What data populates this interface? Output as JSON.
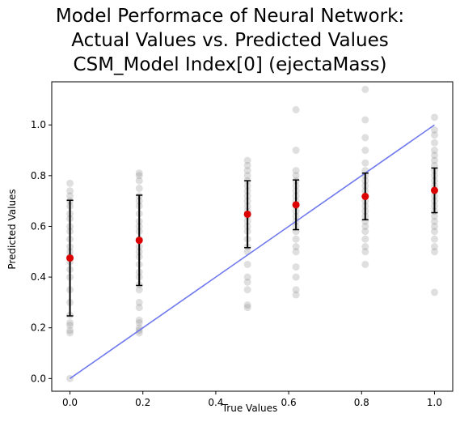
{
  "chart_data": {
    "type": "scatter",
    "title": [
      "Model Performace of Neural Network:",
      "Actual Values vs. Predicted Values",
      "CSM_Model Index[0] (ejectaMass)"
    ],
    "xlabel": "True Values",
    "ylabel": "Predicted Values",
    "xlim": [
      -0.05,
      1.05
    ],
    "ylim": [
      -0.05,
      1.17
    ],
    "xticks": [
      "0.0",
      "0.2",
      "0.4",
      "0.6",
      "0.8",
      "1.0"
    ],
    "yticks": [
      "0.0",
      "0.2",
      "0.4",
      "0.6",
      "0.8",
      "1.0"
    ],
    "grid": false,
    "colors": {
      "scatter": "#808080",
      "mean": "#dd0000",
      "errorbar": "#000000",
      "reference_line": "#6f79ec"
    },
    "reference_line": {
      "x": [
        0,
        1
      ],
      "y": [
        0,
        1
      ]
    },
    "groups": [
      {
        "x": 0.0,
        "mean": 0.475,
        "std": 0.228,
        "y": [
          0.0,
          0.18,
          0.19,
          0.21,
          0.22,
          0.25,
          0.3,
          0.35,
          0.4,
          0.43,
          0.46,
          0.48,
          0.5,
          0.52,
          0.55,
          0.58,
          0.6,
          0.63,
          0.65,
          0.68,
          0.7,
          0.72,
          0.74,
          0.77
        ]
      },
      {
        "x": 0.19,
        "mean": 0.545,
        "std": 0.178,
        "y": [
          0.18,
          0.19,
          0.2,
          0.22,
          0.23,
          0.28,
          0.3,
          0.35,
          0.37,
          0.4,
          0.42,
          0.45,
          0.48,
          0.5,
          0.52,
          0.55,
          0.58,
          0.6,
          0.62,
          0.65,
          0.68,
          0.7,
          0.72,
          0.75,
          0.78,
          0.8,
          0.81
        ]
      },
      {
        "x": 0.487,
        "mean": 0.648,
        "std": 0.132,
        "y": [
          0.28,
          0.29,
          0.35,
          0.38,
          0.4,
          0.45,
          0.5,
          0.52,
          0.55,
          0.58,
          0.6,
          0.62,
          0.64,
          0.66,
          0.68,
          0.7,
          0.72,
          0.74,
          0.76,
          0.78,
          0.8,
          0.82,
          0.84,
          0.86
        ]
      },
      {
        "x": 0.62,
        "mean": 0.685,
        "std": 0.098,
        "y": [
          0.33,
          0.35,
          0.4,
          0.44,
          0.5,
          0.52,
          0.55,
          0.58,
          0.6,
          0.62,
          0.64,
          0.66,
          0.68,
          0.7,
          0.72,
          0.74,
          0.76,
          0.78,
          0.8,
          0.82,
          0.9,
          1.06
        ]
      },
      {
        "x": 0.81,
        "mean": 0.718,
        "std": 0.092,
        "y": [
          0.45,
          0.5,
          0.52,
          0.55,
          0.58,
          0.6,
          0.62,
          0.64,
          0.66,
          0.68,
          0.7,
          0.72,
          0.74,
          0.76,
          0.78,
          0.8,
          0.82,
          0.85,
          0.9,
          0.95,
          1.02,
          1.14
        ]
      },
      {
        "x": 1.0,
        "mean": 0.742,
        "std": 0.088,
        "y": [
          0.34,
          0.5,
          0.52,
          0.55,
          0.58,
          0.6,
          0.62,
          0.64,
          0.66,
          0.68,
          0.7,
          0.72,
          0.74,
          0.76,
          0.78,
          0.8,
          0.82,
          0.84,
          0.86,
          0.88,
          0.9,
          0.93,
          0.96,
          0.98,
          1.03
        ]
      }
    ]
  }
}
